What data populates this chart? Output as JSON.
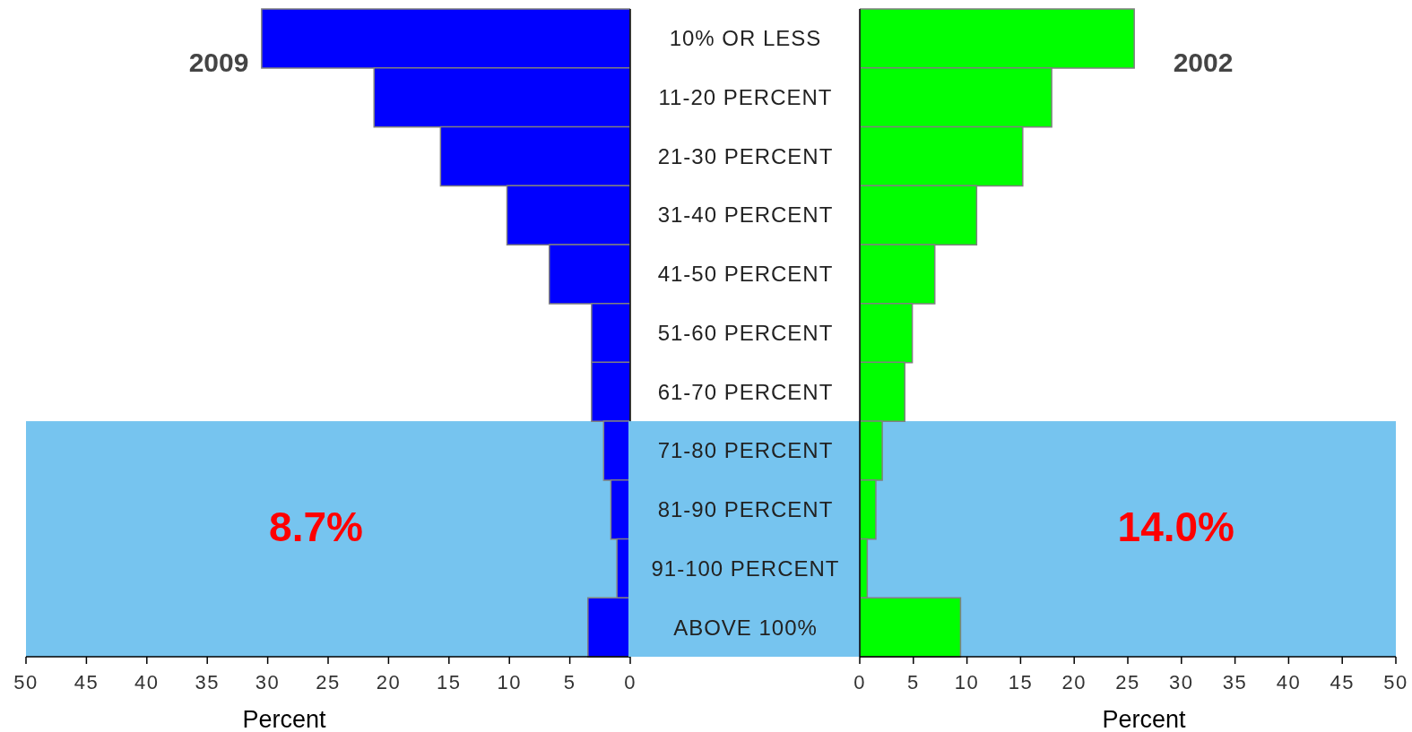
{
  "chart_data": [
    {
      "type": "bar",
      "orientation": "horizontal",
      "title": "2009",
      "xlabel": "Percent",
      "categories": [
        "10% OR LESS",
        "11-20 PERCENT",
        "21-30 PERCENT",
        "31-40 PERCENT",
        "41-50 PERCENT",
        "51-60 PERCENT",
        "61-70 PERCENT",
        "71-80 PERCENT",
        "81-90 PERCENT",
        "91-100 PERCENT",
        "ABOVE 100%"
      ],
      "values": [
        30.5,
        21.2,
        15.7,
        10.2,
        6.7,
        3.2,
        3.2,
        2.2,
        1.6,
        1.1,
        3.5
      ],
      "color": "#0000ff",
      "xlim": [
        50,
        0
      ],
      "xticks": [
        50,
        45,
        40,
        35,
        30,
        25,
        20,
        15,
        10,
        5,
        0
      ],
      "tick_labels": "x",
      "bands": [
        {
          "axis": "y",
          "from": "71-80 PERCENT",
          "to": "ABOVE 100%",
          "color": "#76c4ef"
        }
      ],
      "annotations": [
        "8.7%"
      ]
    },
    {
      "type": "bar",
      "orientation": "horizontal",
      "title": "2002",
      "xlabel": "Percent",
      "categories": [
        "10% OR LESS",
        "11-20 PERCENT",
        "21-30 PERCENT",
        "31-40 PERCENT",
        "41-50 PERCENT",
        "51-60 PERCENT",
        "61-70 PERCENT",
        "71-80 PERCENT",
        "81-90 PERCENT",
        "91-100 PERCENT",
        "ABOVE 100%"
      ],
      "values": [
        25.6,
        17.9,
        15.2,
        10.9,
        7.0,
        4.9,
        4.2,
        2.1,
        1.5,
        0.7,
        9.4
      ],
      "color": "#00ff00",
      "xlim": [
        0,
        50
      ],
      "xticks": [
        0,
        5,
        10,
        15,
        20,
        25,
        30,
        35,
        40,
        45,
        50
      ],
      "bands": [
        {
          "axis": "y",
          "from": "71-80 PERCENT",
          "to": "ABOVE 100%",
          "color": "#76c4ef"
        }
      ],
      "annotations": [
        "14.0%"
      ]
    }
  ]
}
